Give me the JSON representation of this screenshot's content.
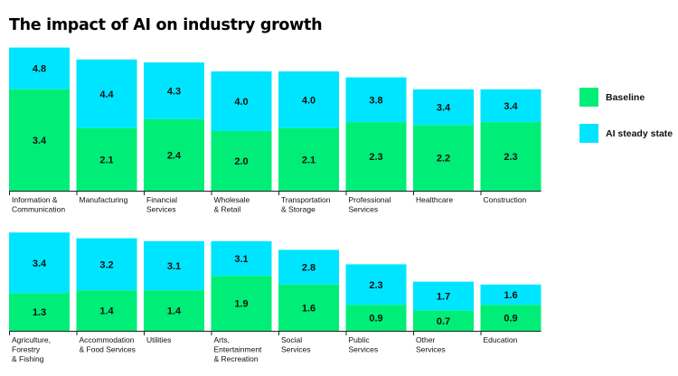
{
  "title": "The impact of AI on industry growth",
  "legend": [
    {
      "label": "Baseline",
      "color": "#00ee77"
    },
    {
      "label": "AI steady state",
      "color": "#00e5ff"
    }
  ],
  "chart_data": {
    "type": "bar",
    "stacked": true,
    "title": "The impact of AI on industry growth",
    "legend_position": "right",
    "series": [
      {
        "name": "Baseline",
        "color": "#00ee77"
      },
      {
        "name": "AI steady state",
        "color": "#00e5ff"
      }
    ],
    "panels": [
      {
        "categories": [
          [
            "Information &",
            "Communication"
          ],
          [
            "Manufacturing"
          ],
          [
            "Financial",
            "Services"
          ],
          [
            "Wholesale",
            "& Retail"
          ],
          [
            "Transportation",
            "& Storage"
          ],
          [
            "Professional",
            "Services"
          ],
          [
            "Healthcare"
          ],
          [
            "Construction"
          ]
        ],
        "baseline": [
          3.4,
          2.1,
          2.4,
          2.0,
          2.1,
          2.3,
          2.2,
          2.3
        ],
        "ai_steady_state": [
          4.8,
          4.4,
          4.3,
          4.0,
          4.0,
          3.8,
          3.4,
          3.4
        ]
      },
      {
        "categories": [
          [
            "Agriculture,",
            "Forestry",
            "& Fishing"
          ],
          [
            "Accommodation",
            "& Food Services"
          ],
          [
            "Utilities"
          ],
          [
            "Arts,",
            "Entertainment",
            "& Recreation"
          ],
          [
            "Social",
            "Services"
          ],
          [
            "Public",
            "Services"
          ],
          [
            "Other",
            "Services"
          ],
          [
            "Education"
          ]
        ],
        "baseline": [
          1.3,
          1.4,
          1.4,
          1.9,
          1.6,
          0.9,
          0.7,
          0.9
        ],
        "ai_steady_state": [
          3.4,
          3.2,
          3.1,
          3.1,
          2.8,
          2.3,
          1.7,
          1.6
        ]
      }
    ]
  }
}
